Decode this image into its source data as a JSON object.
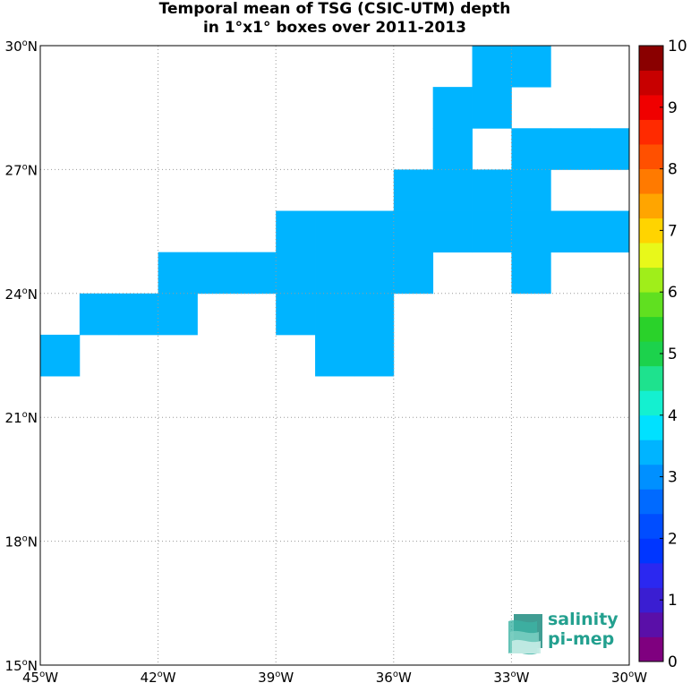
{
  "title": {
    "line1": "Temporal mean of TSG (CSIC-UTM) depth",
    "line2": "in 1°x1° boxes over 2011-2013"
  },
  "map": {
    "lon_range": [
      -45,
      -30
    ],
    "lat_range": [
      15,
      30
    ],
    "lon_ticks": [
      {
        "value": -45,
        "deg": "45",
        "hemi": "W"
      },
      {
        "value": -42,
        "deg": "42",
        "hemi": "W"
      },
      {
        "value": -39,
        "deg": "39",
        "hemi": "W"
      },
      {
        "value": -36,
        "deg": "36",
        "hemi": "W"
      },
      {
        "value": -33,
        "deg": "33",
        "hemi": "W"
      },
      {
        "value": -30,
        "deg": "30",
        "hemi": "W"
      }
    ],
    "lat_ticks": [
      {
        "value": 15,
        "deg": "15",
        "hemi": "N"
      },
      {
        "value": 18,
        "deg": "18",
        "hemi": "N"
      },
      {
        "value": 21,
        "deg": "21",
        "hemi": "N"
      },
      {
        "value": 24,
        "deg": "24",
        "hemi": "N"
      },
      {
        "value": 27,
        "deg": "27",
        "hemi": "N"
      },
      {
        "value": 30,
        "deg": "30",
        "hemi": "N"
      }
    ],
    "grid": "dotted",
    "cell_value": 3,
    "cell_color": "#00b4ff",
    "cells": [
      {
        "lon": -34,
        "lat": 29
      },
      {
        "lon": -33,
        "lat": 29
      },
      {
        "lon": -35,
        "lat": 28
      },
      {
        "lon": -34,
        "lat": 28
      },
      {
        "lon": -35,
        "lat": 27
      },
      {
        "lon": -33,
        "lat": 27
      },
      {
        "lon": -32,
        "lat": 27
      },
      {
        "lon": -31,
        "lat": 27
      },
      {
        "lon": -36,
        "lat": 26
      },
      {
        "lon": -35,
        "lat": 26
      },
      {
        "lon": -34,
        "lat": 26
      },
      {
        "lon": -33,
        "lat": 26
      },
      {
        "lon": -39,
        "lat": 25
      },
      {
        "lon": -38,
        "lat": 25
      },
      {
        "lon": -37,
        "lat": 25
      },
      {
        "lon": -36,
        "lat": 25
      },
      {
        "lon": -35,
        "lat": 25
      },
      {
        "lon": -34,
        "lat": 25
      },
      {
        "lon": -33,
        "lat": 25
      },
      {
        "lon": -32,
        "lat": 25
      },
      {
        "lon": -31,
        "lat": 25
      },
      {
        "lon": -42,
        "lat": 24
      },
      {
        "lon": -41,
        "lat": 24
      },
      {
        "lon": -40,
        "lat": 24
      },
      {
        "lon": -39,
        "lat": 24
      },
      {
        "lon": -38,
        "lat": 24
      },
      {
        "lon": -37,
        "lat": 24
      },
      {
        "lon": -36,
        "lat": 24
      },
      {
        "lon": -33,
        "lat": 24
      },
      {
        "lon": -44,
        "lat": 23
      },
      {
        "lon": -43,
        "lat": 23
      },
      {
        "lon": -42,
        "lat": 23
      },
      {
        "lon": -39,
        "lat": 23
      },
      {
        "lon": -38,
        "lat": 23
      },
      {
        "lon": -37,
        "lat": 23
      },
      {
        "lon": -45,
        "lat": 22
      },
      {
        "lon": -38,
        "lat": 22
      },
      {
        "lon": -37,
        "lat": 22
      }
    ]
  },
  "colorbar": {
    "range": [
      0,
      10
    ],
    "tick_labels": [
      "0",
      "1",
      "2",
      "3",
      "4",
      "5",
      "6",
      "7",
      "8",
      "9",
      "10"
    ],
    "colors": [
      "#7f007f",
      "#5a0fa8",
      "#3a1ed2",
      "#2b28f0",
      "#0036ff",
      "#004dff",
      "#006aff",
      "#0090ff",
      "#00b4ff",
      "#00e1ff",
      "#14f0d0",
      "#1ee28e",
      "#1cd24c",
      "#2ad22a",
      "#60e020",
      "#a0ee1a",
      "#e8f81a",
      "#ffd400",
      "#ffa500",
      "#ff7a00",
      "#ff5000",
      "#ff2a00",
      "#f00000",
      "#c80000",
      "#8a0000"
    ]
  },
  "logo": {
    "line1": "salinity",
    "line2": "pi-mep",
    "color": "#23a08f"
  }
}
